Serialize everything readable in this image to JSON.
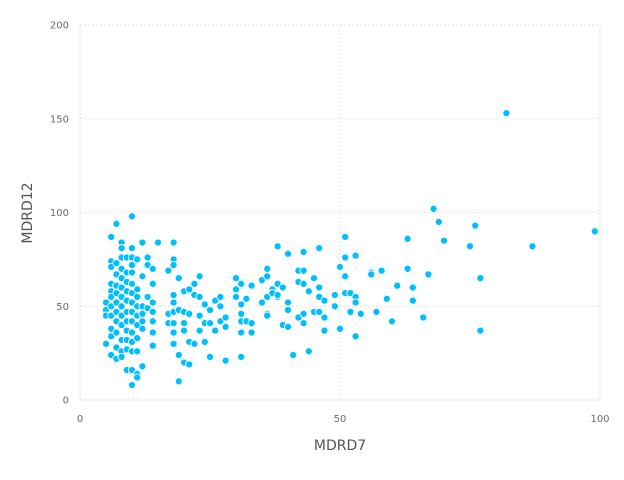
{
  "chart_data": {
    "type": "scatter",
    "xlabel": "MDRD7",
    "ylabel": "MDRD12",
    "xlim": [
      0,
      100
    ],
    "ylim": [
      0,
      200
    ],
    "x_ticks": [
      0,
      50,
      100
    ],
    "y_ticks": [
      0,
      50,
      100,
      150,
      200
    ],
    "x_tick_labels": [
      "0",
      "50",
      "100"
    ],
    "y_tick_labels": [
      "0",
      "50",
      "100",
      "150",
      "200"
    ],
    "grid": true,
    "marker_color": "#00BFFF",
    "points": [
      [
        5,
        52
      ],
      [
        5,
        48
      ],
      [
        5,
        45
      ],
      [
        5,
        30
      ],
      [
        6,
        87
      ],
      [
        6,
        74
      ],
      [
        6,
        71
      ],
      [
        6,
        62
      ],
      [
        6,
        58
      ],
      [
        6,
        55
      ],
      [
        6,
        50
      ],
      [
        6,
        45
      ],
      [
        6,
        38
      ],
      [
        6,
        34
      ],
      [
        6,
        24
      ],
      [
        7,
        94
      ],
      [
        7,
        73
      ],
      [
        7,
        67
      ],
      [
        7,
        61
      ],
      [
        7,
        57
      ],
      [
        7,
        52
      ],
      [
        7,
        47
      ],
      [
        7,
        42
      ],
      [
        7,
        36
      ],
      [
        7,
        28
      ],
      [
        7,
        22
      ],
      [
        8,
        84
      ],
      [
        8,
        81
      ],
      [
        8,
        76
      ],
      [
        8,
        70
      ],
      [
        8,
        65
      ],
      [
        8,
        60
      ],
      [
        8,
        55
      ],
      [
        8,
        50
      ],
      [
        8,
        45
      ],
      [
        8,
        40
      ],
      [
        8,
        32
      ],
      [
        8,
        26
      ],
      [
        8,
        23
      ],
      [
        9,
        76
      ],
      [
        9,
        68
      ],
      [
        9,
        63
      ],
      [
        9,
        58
      ],
      [
        9,
        53
      ],
      [
        9,
        47
      ],
      [
        9,
        42
      ],
      [
        9,
        37
      ],
      [
        9,
        32
      ],
      [
        9,
        27
      ],
      [
        9,
        16
      ],
      [
        10,
        98
      ],
      [
        10,
        81
      ],
      [
        10,
        76
      ],
      [
        10,
        72
      ],
      [
        10,
        68
      ],
      [
        10,
        62
      ],
      [
        10,
        57
      ],
      [
        10,
        52
      ],
      [
        10,
        47
      ],
      [
        10,
        42
      ],
      [
        10,
        36
      ],
      [
        10,
        31
      ],
      [
        10,
        26
      ],
      [
        10,
        16
      ],
      [
        10,
        8
      ],
      [
        11,
        75
      ],
      [
        11,
        59
      ],
      [
        11,
        55
      ],
      [
        11,
        50
      ],
      [
        11,
        45
      ],
      [
        11,
        40
      ],
      [
        11,
        33
      ],
      [
        11,
        26
      ],
      [
        11,
        14
      ],
      [
        11,
        12
      ],
      [
        12,
        84
      ],
      [
        12,
        66
      ],
      [
        12,
        50
      ],
      [
        12,
        46
      ],
      [
        12,
        42
      ],
      [
        12,
        38
      ],
      [
        12,
        18
      ],
      [
        13,
        76
      ],
      [
        13,
        72
      ],
      [
        13,
        55
      ],
      [
        13,
        49
      ],
      [
        14,
        70
      ],
      [
        14,
        62
      ],
      [
        14,
        52
      ],
      [
        14,
        47
      ],
      [
        14,
        42
      ],
      [
        14,
        36
      ],
      [
        14,
        29
      ],
      [
        15,
        84
      ],
      [
        17,
        69
      ],
      [
        17,
        46
      ],
      [
        17,
        41
      ],
      [
        18,
        84
      ],
      [
        18,
        75
      ],
      [
        18,
        72
      ],
      [
        18,
        56
      ],
      [
        18,
        52
      ],
      [
        18,
        47
      ],
      [
        18,
        41
      ],
      [
        18,
        36
      ],
      [
        18,
        30
      ],
      [
        19,
        65
      ],
      [
        19,
        48
      ],
      [
        19,
        24
      ],
      [
        19,
        10
      ],
      [
        20,
        58
      ],
      [
        20,
        47
      ],
      [
        20,
        41
      ],
      [
        20,
        37
      ],
      [
        20,
        20
      ],
      [
        21,
        59
      ],
      [
        21,
        46
      ],
      [
        21,
        31
      ],
      [
        21,
        19
      ],
      [
        22,
        62
      ],
      [
        22,
        56
      ],
      [
        22,
        30
      ],
      [
        23,
        66
      ],
      [
        23,
        55
      ],
      [
        23,
        45
      ],
      [
        23,
        37
      ],
      [
        24,
        51
      ],
      [
        24,
        41
      ],
      [
        24,
        31
      ],
      [
        25,
        48
      ],
      [
        25,
        41
      ],
      [
        25,
        23
      ],
      [
        26,
        53
      ],
      [
        26,
        37
      ],
      [
        27,
        55
      ],
      [
        27,
        50
      ],
      [
        27,
        42
      ],
      [
        28,
        44
      ],
      [
        28,
        39
      ],
      [
        28,
        21
      ],
      [
        30,
        65
      ],
      [
        30,
        59
      ],
      [
        30,
        55
      ],
      [
        31,
        62
      ],
      [
        31,
        51
      ],
      [
        31,
        46
      ],
      [
        31,
        42
      ],
      [
        31,
        36
      ],
      [
        31,
        23
      ],
      [
        32,
        54
      ],
      [
        32,
        42
      ],
      [
        33,
        61
      ],
      [
        33,
        41
      ],
      [
        33,
        36
      ],
      [
        35,
        64
      ],
      [
        35,
        52
      ],
      [
        36,
        70
      ],
      [
        36,
        66
      ],
      [
        36,
        55
      ],
      [
        36,
        46
      ],
      [
        36,
        45
      ],
      [
        37,
        59
      ],
      [
        37,
        57
      ],
      [
        38,
        82
      ],
      [
        38,
        62
      ],
      [
        38,
        55
      ],
      [
        38,
        56
      ],
      [
        39,
        60
      ],
      [
        39,
        40
      ],
      [
        40,
        78
      ],
      [
        40,
        52
      ],
      [
        40,
        48
      ],
      [
        40,
        39
      ],
      [
        41,
        24
      ],
      [
        42,
        69
      ],
      [
        42,
        63
      ],
      [
        42,
        44
      ],
      [
        43,
        79
      ],
      [
        43,
        69
      ],
      [
        43,
        62
      ],
      [
        43,
        46
      ],
      [
        43,
        41
      ],
      [
        44,
        58
      ],
      [
        44,
        26
      ],
      [
        45,
        65
      ],
      [
        45,
        47
      ],
      [
        46,
        81
      ],
      [
        46,
        60
      ],
      [
        46,
        55
      ],
      [
        46,
        47
      ],
      [
        47,
        53
      ],
      [
        47,
        44
      ],
      [
        47,
        37
      ],
      [
        49,
        56
      ],
      [
        49,
        50
      ],
      [
        50,
        71
      ],
      [
        50,
        38
      ],
      [
        51,
        87
      ],
      [
        51,
        76
      ],
      [
        51,
        66
      ],
      [
        51,
        57
      ],
      [
        52,
        57
      ],
      [
        52,
        47
      ],
      [
        53,
        77
      ],
      [
        53,
        55
      ],
      [
        53,
        52
      ],
      [
        53,
        34
      ],
      [
        54,
        46
      ],
      [
        56,
        68
      ],
      [
        56,
        67
      ],
      [
        57,
        47
      ],
      [
        58,
        69
      ],
      [
        59,
        54
      ],
      [
        60,
        42
      ],
      [
        61,
        61
      ],
      [
        63,
        86
      ],
      [
        63,
        70
      ],
      [
        64,
        60
      ],
      [
        64,
        53
      ],
      [
        66,
        44
      ],
      [
        67,
        67
      ],
      [
        68,
        102
      ],
      [
        69,
        95
      ],
      [
        70,
        85
      ],
      [
        75,
        82
      ],
      [
        76,
        93
      ],
      [
        77,
        65
      ],
      [
        77,
        37
      ],
      [
        82,
        153
      ],
      [
        87,
        82
      ],
      [
        99,
        90
      ]
    ]
  }
}
